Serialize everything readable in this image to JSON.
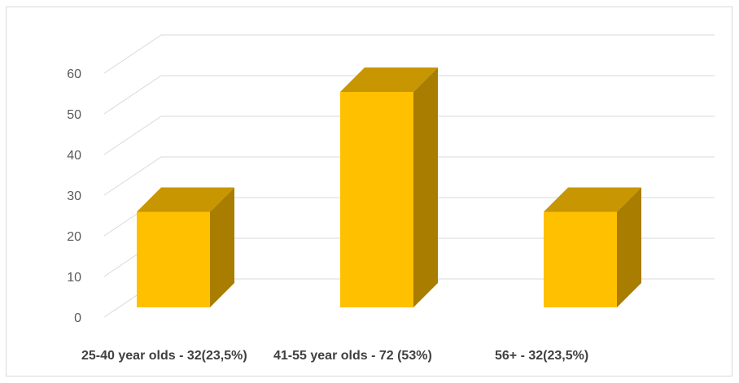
{
  "chart_data": {
    "type": "bar",
    "three_d": true,
    "categories": [
      "25-40 year olds - 32(23,5%)",
      "41-55 year olds - 72 (53%)",
      "56+ - 32(23,5%)"
    ],
    "values": [
      23.5,
      53,
      23.5
    ],
    "ylim": [
      0,
      60
    ],
    "yticks": [
      0,
      10,
      20,
      30,
      40,
      50,
      60
    ],
    "grid": true,
    "legend": "none",
    "colors": {
      "front": "#ffc000",
      "top": "#c79600",
      "side": "#a87d00",
      "grid": "#d9d9d9",
      "axis_text": "#595959",
      "label_text": "#404040"
    }
  }
}
